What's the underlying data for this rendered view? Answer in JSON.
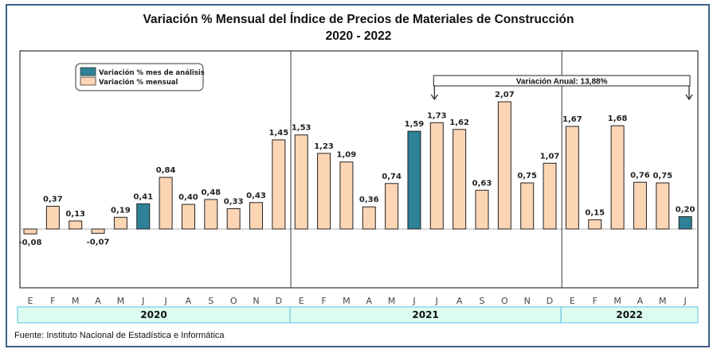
{
  "chart_data": {
    "type": "bar",
    "title": "Variación % Mensual del Índice de Precios de Materiales de Construcción",
    "subtitle": "2020 - 2022",
    "xlabel": "",
    "ylabel": "",
    "ylim": [
      -0.95,
      2.9
    ],
    "grid": false,
    "legend": {
      "position": "top-left",
      "entries": [
        {
          "name": "Variación % mes de análisis",
          "color": "#2e8197"
        },
        {
          "name": "Variación % mensual",
          "color": "#fcd5b4"
        }
      ]
    },
    "categories": [
      "E",
      "F",
      "M",
      "A",
      "M",
      "J",
      "J",
      "A",
      "S",
      "O",
      "N",
      "D",
      "E",
      "F",
      "M",
      "A",
      "M",
      "J",
      "J",
      "A",
      "S",
      "O",
      "N",
      "D",
      "E",
      "F",
      "M",
      "A",
      "M",
      "J"
    ],
    "values": [
      -0.08,
      0.37,
      0.13,
      -0.07,
      0.19,
      0.41,
      0.84,
      0.4,
      0.48,
      0.33,
      0.43,
      1.45,
      1.53,
      1.23,
      1.09,
      0.36,
      0.74,
      1.59,
      1.73,
      1.62,
      0.63,
      2.07,
      0.75,
      1.07,
      1.67,
      0.15,
      1.68,
      0.76,
      0.75,
      0.2
    ],
    "labels": [
      "-0,08",
      "0,37",
      "0,13",
      "-0,07",
      "0,19",
      "0,41",
      "0,84",
      "0,40",
      "0,48",
      "0,33",
      "0,43",
      "1,45",
      "1,53",
      "1,23",
      "1,09",
      "0,36",
      "0,74",
      "1,59",
      "1,73",
      "1,62",
      "0,63",
      "2,07",
      "0,75",
      "1,07",
      "1,67",
      "0,15",
      "1,68",
      "0,76",
      "0,75",
      "0,20"
    ],
    "highlight_indices": [
      5,
      17,
      29
    ],
    "years": [
      {
        "label": "2020",
        "start": 0,
        "end": 11
      },
      {
        "label": "2021",
        "start": 12,
        "end": 23
      },
      {
        "label": "2022",
        "start": 24,
        "end": 29
      }
    ],
    "annotation": {
      "text": "Variación Anual: 13,88%",
      "from_index": 18,
      "to_index": 29
    }
  },
  "colors": {
    "highlight": "#2e8197",
    "normal": "#fcd5b4",
    "year_band": "#dcfcf0",
    "year_border": "#5bc0de",
    "frame": "#3f5f87"
  },
  "source": "Fuente: Instituto Nacional de Estadística e Informática"
}
